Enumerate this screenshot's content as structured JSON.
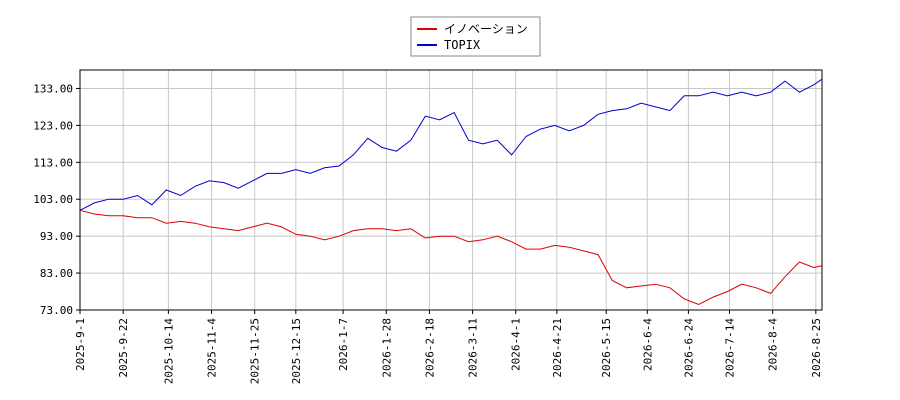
{
  "chart_data": {
    "type": "line",
    "x": [
      "2025-09-01",
      "2025-09-08",
      "2025-09-15",
      "2025-09-22",
      "2025-09-29",
      "2025-10-06",
      "2025-10-13",
      "2025-10-20",
      "2025-10-27",
      "2025-11-03",
      "2025-11-10",
      "2025-11-17",
      "2025-11-24",
      "2025-12-01",
      "2025-12-08",
      "2025-12-15",
      "2025-12-22",
      "2025-12-29",
      "2026-01-05",
      "2026-01-12",
      "2026-01-19",
      "2026-01-26",
      "2026-02-02",
      "2026-02-09",
      "2026-02-16",
      "2026-02-23",
      "2026-03-02",
      "2026-03-09",
      "2026-03-16",
      "2026-03-23",
      "2026-03-30",
      "2026-04-06",
      "2026-04-13",
      "2026-04-20",
      "2026-04-27",
      "2026-05-04",
      "2026-05-11",
      "2026-05-18",
      "2026-05-25",
      "2026-06-01",
      "2026-06-08",
      "2026-06-15",
      "2026-06-22",
      "2026-06-29",
      "2026-07-06",
      "2026-07-13",
      "2026-07-20",
      "2026-07-27",
      "2026-08-03",
      "2026-08-10",
      "2026-08-17",
      "2026-08-24",
      "2026-08-28"
    ],
    "series": [
      {
        "name": "イノベーション",
        "color": "#dd0000",
        "values": [
          100,
          99,
          98.5,
          98.5,
          98,
          98,
          96.5,
          97,
          96.5,
          95.5,
          95,
          94.5,
          95.5,
          96.5,
          95.5,
          93.5,
          93,
          92,
          93,
          94.5,
          95,
          95,
          94.5,
          95,
          92.5,
          93,
          93,
          91.5,
          92,
          93,
          91.5,
          89.5,
          89.5,
          90.5,
          90,
          89,
          88,
          81,
          79,
          79.5,
          80,
          79,
          76,
          74.5,
          76.5,
          78,
          80,
          79,
          77.5,
          82,
          86,
          84.5,
          85
        ]
      },
      {
        "name": "TOPIX",
        "color": "#0000cc",
        "values": [
          100,
          102,
          103,
          103,
          104,
          101.5,
          105.5,
          104,
          106.5,
          108,
          107.5,
          106,
          108,
          110,
          110,
          111,
          110,
          111.5,
          112,
          115,
          119.5,
          117,
          116,
          119,
          125.5,
          124.5,
          126.5,
          119,
          118,
          119,
          115,
          120,
          122,
          123,
          121.5,
          123,
          126,
          127,
          127.5,
          129,
          128,
          127,
          131,
          131,
          132,
          131,
          132,
          131,
          132,
          135,
          132,
          134,
          135.5
        ]
      }
    ],
    "xlim": [
      "2025-09-01",
      "2026-08-28"
    ],
    "xticks": [
      {
        "value": "2025-09-01",
        "label": "2025-9-1"
      },
      {
        "value": "2025-09-22",
        "label": "2025-9-22"
      },
      {
        "value": "2025-10-14",
        "label": "2025-10-14"
      },
      {
        "value": "2025-11-04",
        "label": "2025-11-4"
      },
      {
        "value": "2025-11-25",
        "label": "2025-11-25"
      },
      {
        "value": "2025-12-15",
        "label": "2025-12-15"
      },
      {
        "value": "2026-01-07",
        "label": "2026-1-7"
      },
      {
        "value": "2026-01-28",
        "label": "2026-1-28"
      },
      {
        "value": "2026-02-18",
        "label": "2026-2-18"
      },
      {
        "value": "2026-03-11",
        "label": "2026-3-11"
      },
      {
        "value": "2026-04-01",
        "label": "2026-4-1"
      },
      {
        "value": "2026-04-21",
        "label": "2026-4-21"
      },
      {
        "value": "2026-05-15",
        "label": "2026-5-15"
      },
      {
        "value": "2026-06-04",
        "label": "2026-6-4"
      },
      {
        "value": "2026-06-24",
        "label": "2026-6-24"
      },
      {
        "value": "2026-07-14",
        "label": "2026-7-14"
      },
      {
        "value": "2026-08-04",
        "label": "2026-8-4"
      },
      {
        "value": "2026-08-25",
        "label": "2026-8-25"
      }
    ],
    "ylim": [
      73,
      138
    ],
    "yticks": [
      {
        "value": 73,
        "label": "73.00"
      },
      {
        "value": 83,
        "label": "83.00"
      },
      {
        "value": 93,
        "label": "93.00"
      },
      {
        "value": 103,
        "label": "103.00"
      },
      {
        "value": 113,
        "label": "113.00"
      },
      {
        "value": 123,
        "label": "123.00"
      },
      {
        "value": 133,
        "label": "133.00"
      }
    ],
    "grid": true,
    "legend": "top"
  }
}
